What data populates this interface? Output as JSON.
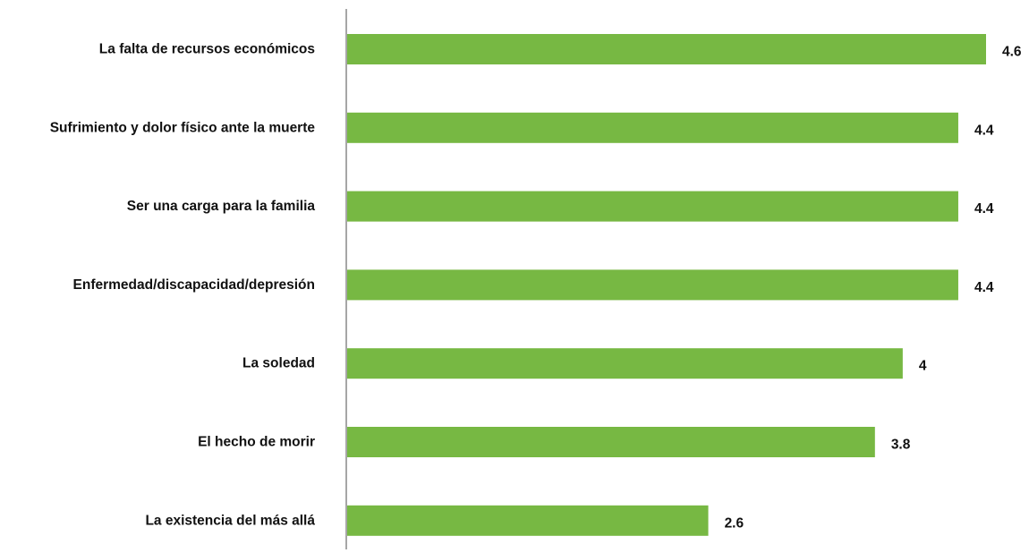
{
  "chart_data": {
    "type": "bar",
    "orientation": "horizontal",
    "categories": [
      "La falta de recursos económicos",
      "Sufrimiento y  dolor físico ante la muerte",
      "Ser una carga para la familia",
      "Enfermedad/discapacidad/depresión",
      "La soledad",
      "El hecho de morir",
      "La existencia del más allá"
    ],
    "values": [
      4.6,
      4.4,
      4.4,
      4.4,
      4,
      3.8,
      2.6
    ],
    "value_labels": [
      "4.6",
      "4.4",
      "4.4",
      "4.4",
      "4",
      "3.8",
      "2.6"
    ],
    "xlim": [
      0,
      4.6
    ],
    "grid": false,
    "legend": "none",
    "colors": {
      "bar": "#77b843",
      "axis": "#a6a6a6",
      "text": "#111111"
    }
  }
}
